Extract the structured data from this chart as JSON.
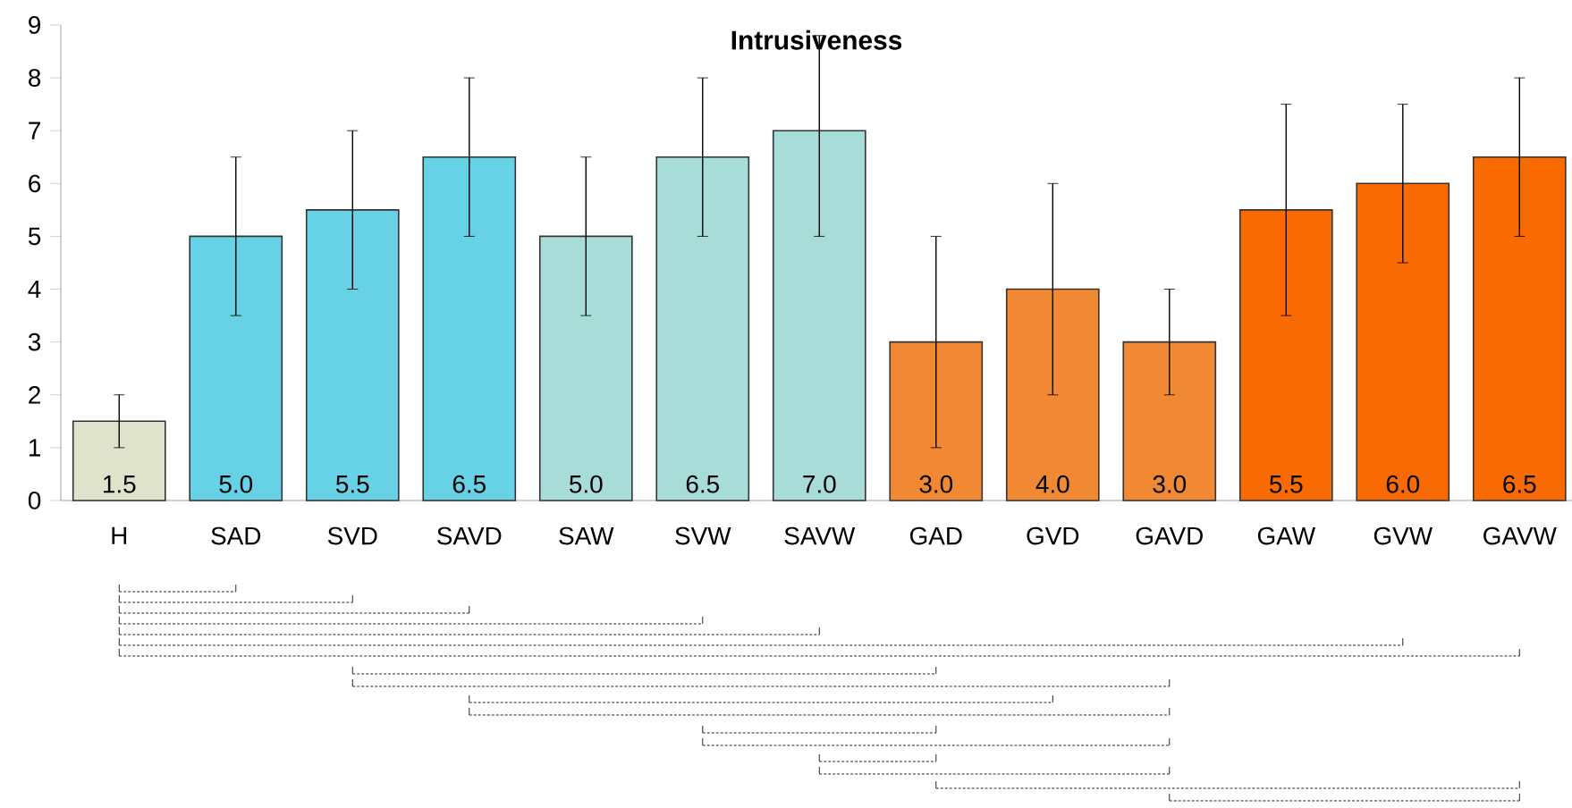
{
  "chart_data": {
    "type": "bar",
    "title": "Intrusiveness",
    "categories": [
      "H",
      "SAD",
      "SVD",
      "SAVD",
      "SAW",
      "SVW",
      "SAVW",
      "GAD",
      "GVD",
      "GAVD",
      "GAW",
      "GVW",
      "GAVW"
    ],
    "values": [
      1.5,
      5,
      5.5,
      6.5,
      5,
      6.5,
      7,
      3,
      4,
      3,
      5.5,
      6,
      6.5
    ],
    "colors": [
      "#dfe3cb",
      "#67d1e6",
      "#67d1e6",
      "#67d1e6",
      "#a8dcd8",
      "#a8dcd8",
      "#a8dcd8",
      "#f18934",
      "#f18934",
      "#f18934",
      "#f96a03",
      "#f96a03",
      "#f96a03"
    ],
    "errors": [
      [
        1,
        2
      ],
      [
        3.5,
        6.5
      ],
      [
        4,
        7
      ],
      [
        5,
        8
      ],
      [
        3.5,
        6.5
      ],
      [
        5,
        8
      ],
      [
        5,
        8.8
      ],
      [
        1,
        5
      ],
      [
        2,
        6
      ],
      [
        2,
        4
      ],
      [
        3.5,
        7.5
      ],
      [
        4.5,
        7.5
      ],
      [
        5,
        8
      ]
    ],
    "value_labels": [
      "1.5",
      "5.0",
      "5.5",
      "6.5",
      "5.0",
      "6.5",
      "7.0",
      "3.0",
      "4.0",
      "3.0",
      "5.5",
      "6.0",
      "6.5"
    ],
    "ylim": [
      0,
      9
    ],
    "yticks": [
      0,
      1,
      2,
      3,
      4,
      5,
      6,
      7,
      8,
      9
    ]
  }
}
